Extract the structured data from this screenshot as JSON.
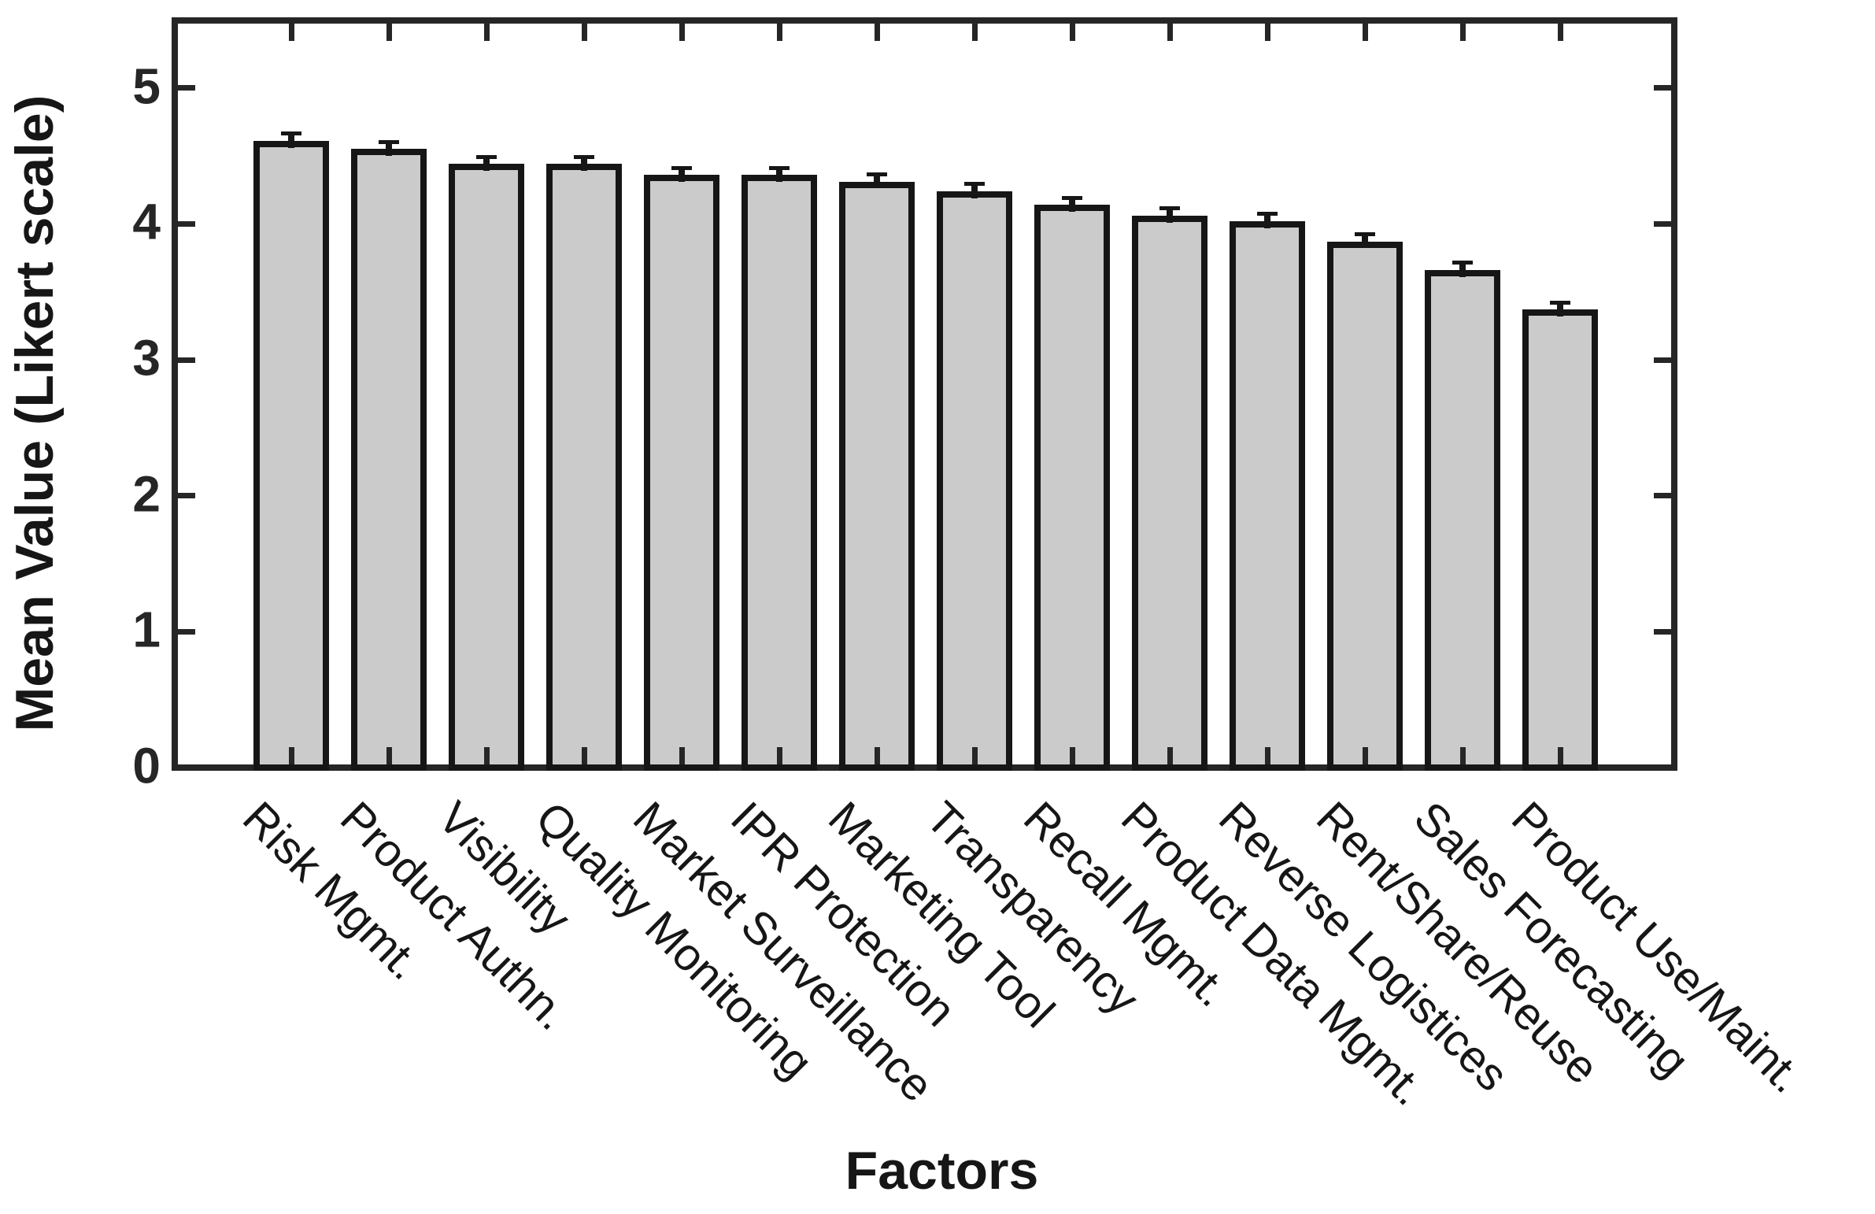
{
  "figure": {
    "background": "#ffffff",
    "axis_color": "#262626",
    "y_axis_title": "Mean Value (Likert scale)",
    "x_axis_title": "Factors"
  },
  "chart_data": {
    "type": "bar",
    "title": "",
    "xlabel": "Factors",
    "ylabel": "Mean Value (Likert scale)",
    "categories": [
      "Risk Mgmt.",
      "Product Authn.",
      "Visibility",
      "Quality Monitoring",
      "Market Surveillance",
      "IPR Protection",
      "Marketing Tool",
      "Transparency",
      "Recall Mgmt.",
      "Product Data Mgmt.",
      "Reverse Logistices",
      "Rent/Share/Reuse",
      "Sales Forecasting",
      "Product Use/Maint."
    ],
    "values": [
      4.61,
      4.55,
      4.44,
      4.44,
      4.36,
      4.36,
      4.31,
      4.24,
      4.14,
      4.06,
      4.02,
      3.87,
      3.66,
      3.37
    ],
    "errors": [
      0.05,
      0.05,
      0.05,
      0.05,
      0.05,
      0.05,
      0.05,
      0.05,
      0.05,
      0.05,
      0.05,
      0.05,
      0.05,
      0.05
    ],
    "yticks": [
      0,
      1,
      2,
      3,
      4,
      5
    ],
    "ytick_labels": [
      "0",
      "1",
      "2",
      "3",
      "4",
      "5"
    ],
    "ylim": [
      0,
      5.5
    ],
    "grid": false,
    "legend_position": "none",
    "bar_fill_color": "#cbcbcb",
    "bar_edge_color": "#161616",
    "error_bar_color": "#161616",
    "tick_direction": "in"
  }
}
